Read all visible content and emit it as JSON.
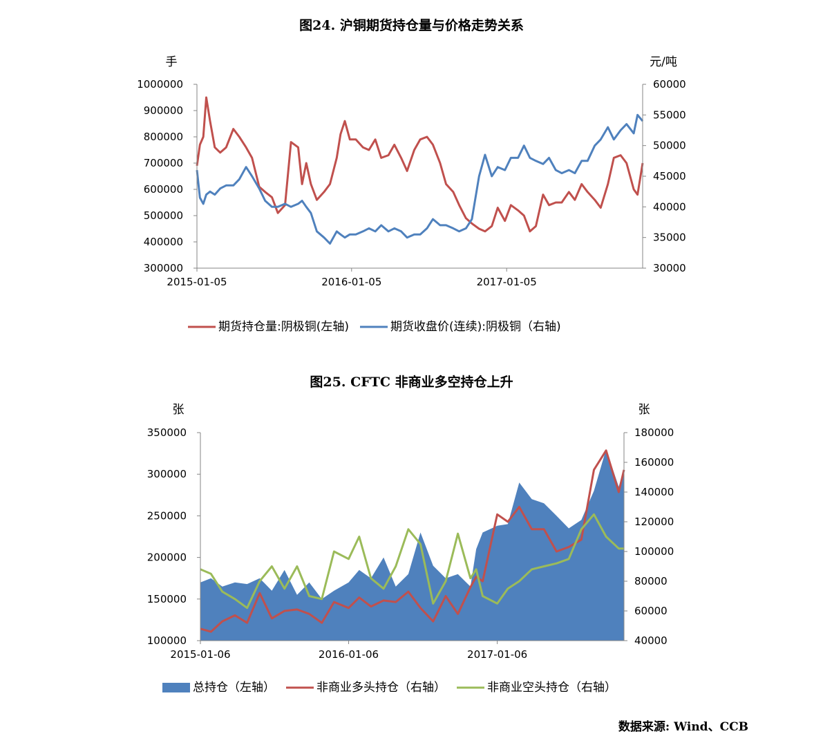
{
  "source_label": "数据来源: Wind、CCB",
  "chart_data": [
    {
      "type": "line",
      "title": "图24.    沪铜期货持仓量与价格走势关系",
      "left_axis": {
        "unit_label": "手",
        "ylim": [
          300000,
          1000000
        ],
        "ticks": [
          "1000000",
          "900000",
          "800000",
          "700000",
          "600000",
          "500000",
          "400000",
          "300000"
        ]
      },
      "right_axis": {
        "unit_label": "元/吨",
        "ylim": [
          30000,
          60000
        ],
        "ticks": [
          "60000",
          "55000",
          "50000",
          "45000",
          "40000",
          "35000",
          "30000"
        ]
      },
      "x_ticks": [
        "2015-01-05",
        "2016-01-05",
        "2017-01-05"
      ],
      "x_domain": [
        "2015-01-05",
        "2017-11-22"
      ],
      "legend_position": "bottom",
      "series": [
        {
          "name": "期货持仓量:阴极铜(左轴)",
          "axis": "left",
          "color": "#c0504d",
          "x": [
            "2015-01-05",
            "2015-01-12",
            "2015-01-20",
            "2015-01-27",
            "2015-02-05",
            "2015-02-16",
            "2015-03-01",
            "2015-03-15",
            "2015-04-01",
            "2015-04-15",
            "2015-05-01",
            "2015-05-15",
            "2015-06-01",
            "2015-06-15",
            "2015-07-01",
            "2015-07-15",
            "2015-08-01",
            "2015-08-15",
            "2015-09-01",
            "2015-09-10",
            "2015-09-20",
            "2015-10-01",
            "2015-10-15",
            "2015-11-01",
            "2015-11-15",
            "2015-12-01",
            "2015-12-10",
            "2015-12-20",
            "2016-01-01",
            "2016-01-15",
            "2016-02-01",
            "2016-02-15",
            "2016-03-01",
            "2016-03-15",
            "2016-04-01",
            "2016-04-15",
            "2016-05-01",
            "2016-05-15",
            "2016-06-01",
            "2016-06-15",
            "2016-07-01",
            "2016-07-15",
            "2016-08-01",
            "2016-08-15",
            "2016-09-01",
            "2016-09-15",
            "2016-10-01",
            "2016-10-15",
            "2016-11-01",
            "2016-11-15",
            "2016-12-01",
            "2016-12-15",
            "2017-01-01",
            "2017-01-15",
            "2017-02-01",
            "2017-02-15",
            "2017-03-01",
            "2017-03-15",
            "2017-04-01",
            "2017-04-15",
            "2017-05-01",
            "2017-05-15",
            "2017-06-01",
            "2017-06-15",
            "2017-07-01",
            "2017-07-15",
            "2017-08-01",
            "2017-08-15",
            "2017-09-01",
            "2017-09-15",
            "2017-10-01",
            "2017-10-15",
            "2017-11-01",
            "2017-11-10",
            "2017-11-22"
          ],
          "values": [
            690000,
            770000,
            800000,
            950000,
            860000,
            760000,
            740000,
            760000,
            830000,
            800000,
            760000,
            720000,
            610000,
            590000,
            570000,
            510000,
            540000,
            780000,
            760000,
            620000,
            700000,
            620000,
            560000,
            590000,
            620000,
            720000,
            810000,
            860000,
            790000,
            790000,
            760000,
            750000,
            790000,
            720000,
            730000,
            770000,
            720000,
            670000,
            750000,
            790000,
            800000,
            770000,
            700000,
            620000,
            590000,
            540000,
            490000,
            470000,
            450000,
            440000,
            460000,
            530000,
            480000,
            540000,
            520000,
            500000,
            440000,
            460000,
            580000,
            540000,
            550000,
            550000,
            590000,
            560000,
            620000,
            590000,
            560000,
            530000,
            620000,
            720000,
            730000,
            700000,
            600000,
            580000,
            700000
          ]
        },
        {
          "name": "期货收盘价(连续):阴极铜（右轴)",
          "axis": "right",
          "color": "#4f81bd",
          "x": [
            "2015-01-05",
            "2015-01-12",
            "2015-01-20",
            "2015-01-27",
            "2015-02-05",
            "2015-02-16",
            "2015-03-01",
            "2015-03-15",
            "2015-04-01",
            "2015-04-15",
            "2015-05-01",
            "2015-05-15",
            "2015-06-01",
            "2015-06-15",
            "2015-07-01",
            "2015-07-15",
            "2015-08-01",
            "2015-08-15",
            "2015-09-01",
            "2015-09-10",
            "2015-09-20",
            "2015-10-01",
            "2015-10-15",
            "2015-11-01",
            "2015-11-15",
            "2015-12-01",
            "2015-12-10",
            "2015-12-20",
            "2016-01-01",
            "2016-01-15",
            "2016-02-01",
            "2016-02-15",
            "2016-03-01",
            "2016-03-15",
            "2016-04-01",
            "2016-04-15",
            "2016-05-01",
            "2016-05-15",
            "2016-06-01",
            "2016-06-15",
            "2016-07-01",
            "2016-07-15",
            "2016-08-01",
            "2016-08-15",
            "2016-09-01",
            "2016-09-15",
            "2016-10-01",
            "2016-10-15",
            "2016-11-01",
            "2016-11-15",
            "2016-12-01",
            "2016-12-15",
            "2017-01-01",
            "2017-01-15",
            "2017-02-01",
            "2017-02-15",
            "2017-03-01",
            "2017-03-15",
            "2017-04-01",
            "2017-04-15",
            "2017-05-01",
            "2017-05-15",
            "2017-06-01",
            "2017-06-15",
            "2017-07-01",
            "2017-07-15",
            "2017-08-01",
            "2017-08-15",
            "2017-09-01",
            "2017-09-15",
            "2017-10-01",
            "2017-10-15",
            "2017-11-01",
            "2017-11-10",
            "2017-11-22"
          ],
          "values": [
            46000,
            41500,
            40500,
            42000,
            42500,
            42000,
            43000,
            43500,
            43500,
            44500,
            46500,
            45000,
            43000,
            41000,
            40000,
            40000,
            40500,
            40000,
            40500,
            41000,
            40000,
            39000,
            36000,
            35000,
            34000,
            36000,
            35500,
            35000,
            35500,
            35500,
            36000,
            36500,
            36000,
            37000,
            36000,
            36500,
            36000,
            35000,
            35500,
            35500,
            36500,
            38000,
            37000,
            37000,
            36500,
            36000,
            36500,
            38000,
            45000,
            48500,
            45000,
            46500,
            46000,
            48000,
            48000,
            50000,
            48000,
            47500,
            47000,
            48000,
            46000,
            45500,
            46000,
            45500,
            47500,
            47500,
            50000,
            51000,
            53000,
            51000,
            52500,
            53500,
            52000,
            55000,
            54000
          ]
        }
      ]
    },
    {
      "type": "area",
      "title": "图25.    CFTC 非商业多空持仓上升",
      "left_axis": {
        "unit_label": "张",
        "ylim": [
          100000,
          350000
        ],
        "ticks": [
          "350000",
          "300000",
          "250000",
          "200000",
          "150000",
          "100000"
        ]
      },
      "right_axis": {
        "unit_label": "张",
        "ylim": [
          40000,
          180000
        ],
        "ticks": [
          "180000",
          "160000",
          "140000",
          "120000",
          "100000",
          "80000",
          "60000",
          "40000"
        ]
      },
      "x_ticks": [
        "2015-01-06",
        "2016-01-06",
        "2017-01-06"
      ],
      "x_domain": [
        "2015-01-06",
        "2017-11-14"
      ],
      "legend_position": "bottom",
      "series": [
        {
          "name": "总持仓（左轴）",
          "axis": "left",
          "kind": "area",
          "color": "#4f81bd",
          "x": [
            "2015-01-06",
            "2015-02-01",
            "2015-03-01",
            "2015-04-01",
            "2015-05-01",
            "2015-06-01",
            "2015-07-01",
            "2015-08-01",
            "2015-09-01",
            "2015-10-01",
            "2015-11-01",
            "2015-12-01",
            "2016-01-06",
            "2016-02-01",
            "2016-03-01",
            "2016-04-01",
            "2016-05-01",
            "2016-06-01",
            "2016-07-01",
            "2016-08-01",
            "2016-09-01",
            "2016-10-01",
            "2016-11-01",
            "2016-11-15",
            "2016-12-01",
            "2017-01-06",
            "2017-02-01",
            "2017-03-01",
            "2017-04-01",
            "2017-05-01",
            "2017-06-01",
            "2017-07-01",
            "2017-08-01",
            "2017-09-01",
            "2017-10-01",
            "2017-11-01",
            "2017-11-14"
          ],
          "values": [
            170000,
            175000,
            165000,
            170000,
            168000,
            175000,
            160000,
            185000,
            155000,
            170000,
            150000,
            160000,
            170000,
            185000,
            175000,
            200000,
            165000,
            180000,
            230000,
            190000,
            175000,
            180000,
            165000,
            210000,
            230000,
            238000,
            240000,
            290000,
            270000,
            265000,
            250000,
            235000,
            245000,
            280000,
            330000,
            285000,
            305000
          ]
        },
        {
          "name": "非商业多头持仓（右轴）",
          "axis": "right",
          "kind": "line",
          "color": "#c0504d",
          "x": [
            "2015-01-06",
            "2015-02-01",
            "2015-03-01",
            "2015-04-01",
            "2015-05-01",
            "2015-06-01",
            "2015-07-01",
            "2015-08-01",
            "2015-09-01",
            "2015-10-01",
            "2015-11-01",
            "2015-12-01",
            "2016-01-06",
            "2016-02-01",
            "2016-03-01",
            "2016-04-01",
            "2016-05-01",
            "2016-06-01",
            "2016-07-01",
            "2016-08-01",
            "2016-09-01",
            "2016-10-01",
            "2016-11-01",
            "2016-11-15",
            "2016-12-01",
            "2017-01-06",
            "2017-02-01",
            "2017-03-01",
            "2017-04-01",
            "2017-05-01",
            "2017-06-01",
            "2017-07-01",
            "2017-08-01",
            "2017-09-01",
            "2017-10-01",
            "2017-11-01",
            "2017-11-14"
          ],
          "values": [
            48000,
            46000,
            53000,
            57000,
            52000,
            72000,
            55000,
            60000,
            61000,
            58000,
            52000,
            66000,
            62000,
            69000,
            63000,
            67000,
            66000,
            73000,
            62000,
            53000,
            70000,
            58000,
            76000,
            83000,
            80000,
            125000,
            120000,
            130000,
            115000,
            115000,
            100000,
            103000,
            108000,
            155000,
            168000,
            140000,
            155000
          ]
        },
        {
          "name": "非商业空头持仓（右轴）",
          "axis": "right",
          "kind": "line",
          "color": "#9bbb59",
          "x": [
            "2015-01-06",
            "2015-02-01",
            "2015-03-01",
            "2015-04-01",
            "2015-05-01",
            "2015-06-01",
            "2015-07-01",
            "2015-08-01",
            "2015-09-01",
            "2015-10-01",
            "2015-11-01",
            "2015-12-01",
            "2016-01-06",
            "2016-02-01",
            "2016-03-01",
            "2016-04-01",
            "2016-05-01",
            "2016-06-01",
            "2016-07-01",
            "2016-08-01",
            "2016-09-01",
            "2016-10-01",
            "2016-11-01",
            "2016-11-15",
            "2016-12-01",
            "2017-01-06",
            "2017-02-01",
            "2017-03-01",
            "2017-04-01",
            "2017-05-01",
            "2017-06-01",
            "2017-07-01",
            "2017-08-01",
            "2017-09-01",
            "2017-10-01",
            "2017-11-01",
            "2017-11-14"
          ],
          "values": [
            88000,
            85000,
            73000,
            68000,
            62000,
            80000,
            90000,
            75000,
            90000,
            70000,
            68000,
            100000,
            95000,
            110000,
            82000,
            75000,
            90000,
            115000,
            105000,
            65000,
            80000,
            112000,
            82000,
            88000,
            70000,
            65000,
            75000,
            80000,
            88000,
            90000,
            92000,
            95000,
            115000,
            125000,
            110000,
            102000,
            102000
          ]
        }
      ]
    }
  ]
}
